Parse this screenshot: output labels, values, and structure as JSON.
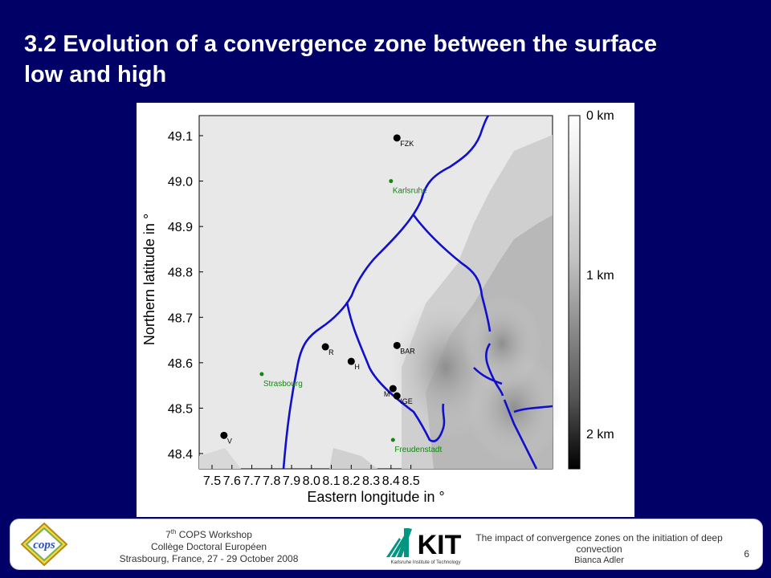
{
  "slide": {
    "title_line1": "3.2 Evolution of a convergence zone between the surface",
    "title_line2": "low and high"
  },
  "map": {
    "x_label": "Eastern longitude in °",
    "y_label": "Northern latitude in °",
    "x_ticks": [
      "7.5",
      "7.6",
      "7.7",
      "7.8",
      "7.9",
      "8.0",
      "8.1",
      "8.2",
      "8.3",
      "8.4",
      "8.5"
    ],
    "y_ticks": [
      "49.1",
      "49.0",
      "48.9",
      "48.8",
      "48.7",
      "48.6",
      "48.5",
      "48.4"
    ],
    "colorbar_labels": [
      "0 km",
      "1 km",
      "2 km"
    ],
    "stations": [
      {
        "label": "FZK",
        "lon": 8.43,
        "lat": 49.095
      },
      {
        "label": "R",
        "lon": 8.07,
        "lat": 48.635
      },
      {
        "label": "H",
        "lon": 8.2,
        "lat": 48.603
      },
      {
        "label": "BAR",
        "lon": 8.43,
        "lat": 48.638
      },
      {
        "label": "M",
        "lon": 8.41,
        "lat": 48.543
      },
      {
        "label": "IGE",
        "lon": 8.43,
        "lat": 48.527
      },
      {
        "label": "V",
        "lon": 7.56,
        "lat": 48.44
      }
    ],
    "cities": [
      {
        "label": "Karlsruhe",
        "lon": 8.4,
        "lat": 49.0
      },
      {
        "label": "Strasbourg",
        "lon": 7.75,
        "lat": 48.575
      },
      {
        "label": "Freudenstadt",
        "lon": 8.41,
        "lat": 48.43
      }
    ],
    "colors": {
      "rivers": "#1010cc",
      "cities": "#118811",
      "stations": "#000000"
    }
  },
  "footer": {
    "workshop": "COPS Workshop",
    "workshop_num": "7",
    "workshop_sup": "th",
    "college": "Collège Doctoral Européen",
    "location": "Strasbourg, France, 27 - 29 October 2008",
    "talk_title": "The impact of convergence zones on the initiation of deep convection",
    "author": "Bianca Adler",
    "slide_number": "6",
    "logo_cops": "cops",
    "logo_kit": "KIT",
    "logo_kit_sub": "Karlsruhe Institute of Technology"
  }
}
